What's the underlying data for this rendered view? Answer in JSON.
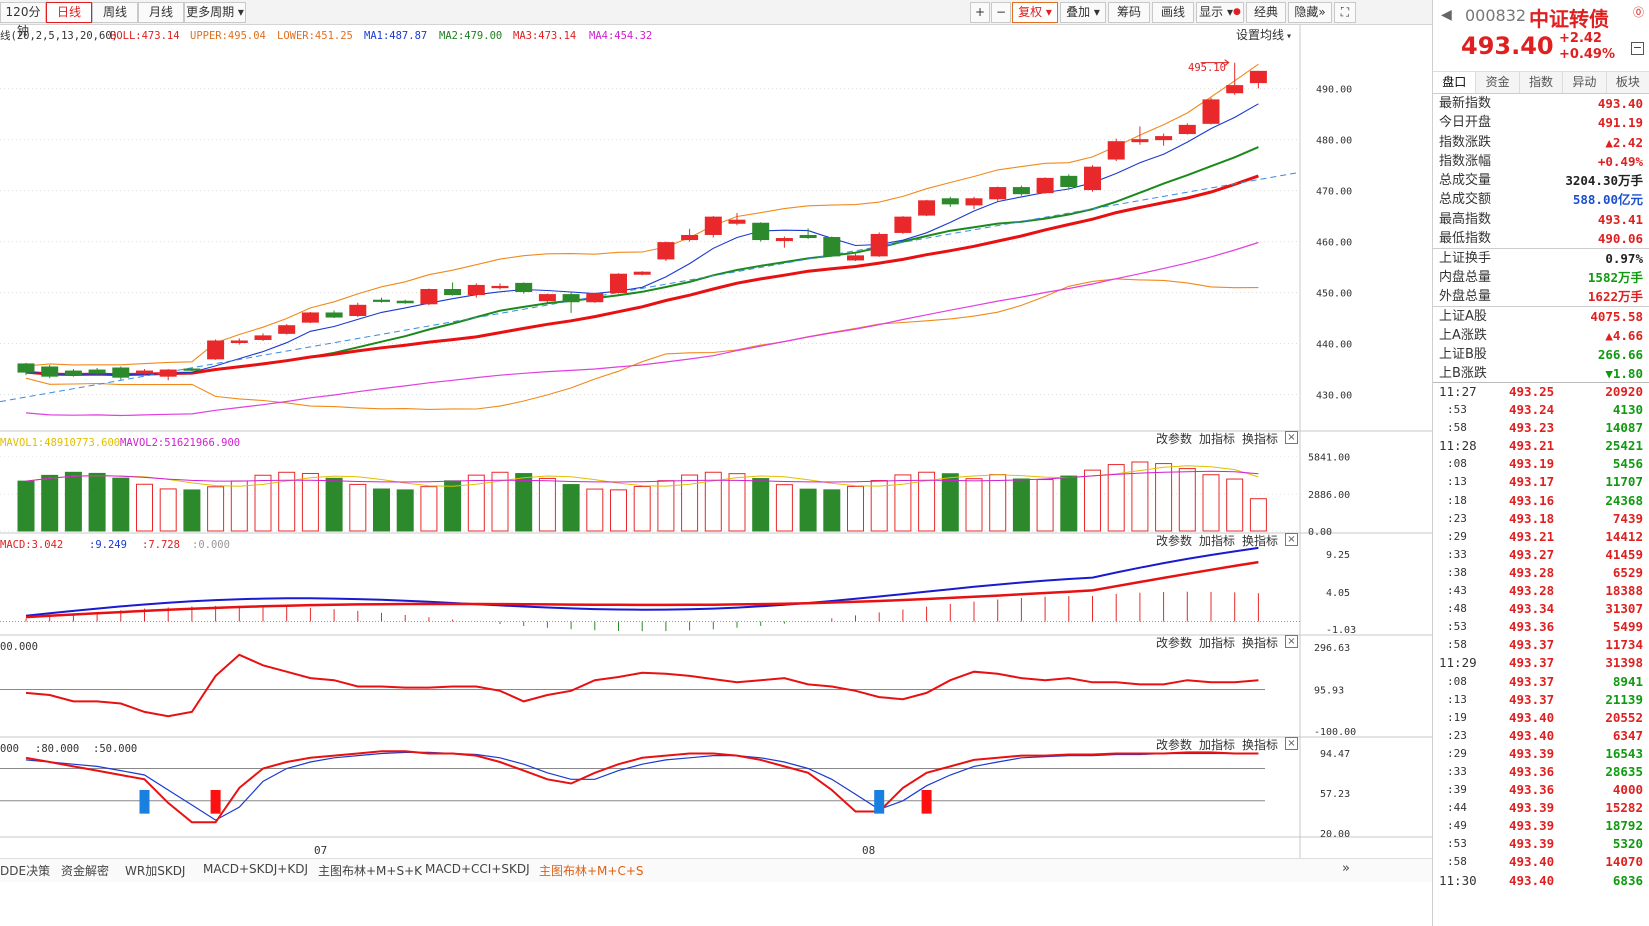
{
  "toolbar": {
    "periods": [
      "120分钟",
      "日线",
      "周线",
      "月线",
      "更多周期"
    ],
    "right_buttons": [
      "+",
      "−",
      "复权",
      "叠加",
      "筹码",
      "画线",
      "显示",
      "经典",
      "隐藏"
    ]
  },
  "legend": {
    "boll_param": "线(20,2,5,13,20,60)",
    "boll": "BOLL:473.14",
    "upper": "UPPER:495.04",
    "lower": "LOWER:451.25",
    "ma1": "MA1:487.87",
    "ma2": "MA2:479.00",
    "ma3": "MA3:473.14",
    "ma4": "MA4:454.32",
    "setting": "设置均线"
  },
  "price_axis": [
    "490.00",
    "480.00",
    "470.00",
    "460.00",
    "450.00",
    "440.00",
    "430.00"
  ],
  "annotations": {
    "high_label": "495.10"
  },
  "vol_legend": {
    "mavol1": "MAVOL1:48910773.600",
    "mavol2": "MAVOL2:51621966.900",
    "axis": [
      "5841.00",
      "2886.00",
      "0.00"
    ]
  },
  "macd_legend": {
    "macd": "MACD:3.042",
    "dif": ":9.249",
    "dea": ":7.728",
    "zero": ":0.000",
    "axis": [
      "9.25",
      "4.05",
      "-1.03"
    ]
  },
  "cci_legend": {
    "cci": "00.000",
    "axis": [
      "296.63",
      "95.93",
      "-100.00"
    ]
  },
  "kdj_legend": {
    "a": "000",
    "b": ":80.000",
    "c": ":50.000",
    "axis": [
      "94.47",
      "57.23",
      "20.00"
    ]
  },
  "pane_buttons": [
    "改参数",
    "加指标",
    "换指标"
  ],
  "x_labels": [
    "07",
    "08"
  ],
  "bottom_tabs": [
    "DDE决策",
    "资金解密",
    "WR加SKDJ",
    "MACD+SKDJ+KDJ",
    "主图布林+M+S+K",
    "MACD+CCI+SKDJ",
    "主图布林+M+C+S"
  ],
  "chart_data": {
    "type": "candlestick",
    "ylim": [
      425,
      497
    ],
    "candles": [
      {
        "o": 436.0,
        "c": 434.4,
        "h": 436.2,
        "l": 433.8
      },
      {
        "o": 435.4,
        "c": 433.6,
        "h": 435.8,
        "l": 433.2
      },
      {
        "o": 434.6,
        "c": 433.8,
        "h": 435.0,
        "l": 433.5
      },
      {
        "o": 434.8,
        "c": 434.2,
        "h": 435.2,
        "l": 433.7
      },
      {
        "o": 435.2,
        "c": 433.4,
        "h": 435.5,
        "l": 432.9
      },
      {
        "o": 434.2,
        "c": 434.6,
        "h": 435.0,
        "l": 433.9
      },
      {
        "o": 433.6,
        "c": 434.8,
        "h": 435.0,
        "l": 432.8
      },
      {
        "o": 435.0,
        "c": 434.8,
        "h": 435.2,
        "l": 434.6
      },
      {
        "o": 437.0,
        "c": 440.5,
        "h": 440.8,
        "l": 436.8
      },
      {
        "o": 440.2,
        "c": 440.5,
        "h": 441.0,
        "l": 439.8
      },
      {
        "o": 440.8,
        "c": 441.5,
        "h": 442.0,
        "l": 440.5
      },
      {
        "o": 442.0,
        "c": 443.5,
        "h": 443.8,
        "l": 441.8
      },
      {
        "o": 444.2,
        "c": 446.0,
        "h": 446.2,
        "l": 444.0
      },
      {
        "o": 446.0,
        "c": 445.2,
        "h": 446.5,
        "l": 445.0
      },
      {
        "o": 445.5,
        "c": 447.5,
        "h": 448.0,
        "l": 445.2
      },
      {
        "o": 448.5,
        "c": 448.3,
        "h": 449.0,
        "l": 448.0
      },
      {
        "o": 448.3,
        "c": 448.0,
        "h": 448.6,
        "l": 447.8
      },
      {
        "o": 447.8,
        "c": 450.6,
        "h": 450.8,
        "l": 447.5
      },
      {
        "o": 450.6,
        "c": 449.6,
        "h": 452.0,
        "l": 449.4
      },
      {
        "o": 449.6,
        "c": 451.4,
        "h": 451.8,
        "l": 449.0
      },
      {
        "o": 451.0,
        "c": 451.2,
        "h": 451.8,
        "l": 450.6
      },
      {
        "o": 451.8,
        "c": 450.2,
        "h": 452.0,
        "l": 449.8
      },
      {
        "o": 448.4,
        "c": 449.6,
        "h": 449.8,
        "l": 447.8
      },
      {
        "o": 449.6,
        "c": 448.2,
        "h": 450.0,
        "l": 446.0
      },
      {
        "o": 448.2,
        "c": 449.8,
        "h": 450.0,
        "l": 448.0
      },
      {
        "o": 450.0,
        "c": 453.6,
        "h": 453.8,
        "l": 449.8
      },
      {
        "o": 453.6,
        "c": 454.0,
        "h": 454.2,
        "l": 453.4
      },
      {
        "o": 456.6,
        "c": 459.8,
        "h": 460.0,
        "l": 456.2
      },
      {
        "o": 460.4,
        "c": 461.2,
        "h": 462.5,
        "l": 460.0
      },
      {
        "o": 461.4,
        "c": 464.8,
        "h": 465.0,
        "l": 460.8
      },
      {
        "o": 463.6,
        "c": 464.2,
        "h": 465.6,
        "l": 463.2
      },
      {
        "o": 463.6,
        "c": 460.4,
        "h": 463.8,
        "l": 460.0
      },
      {
        "o": 460.2,
        "c": 460.6,
        "h": 461.0,
        "l": 458.8
      },
      {
        "o": 461.2,
        "c": 460.8,
        "h": 462.6,
        "l": 460.5
      },
      {
        "o": 460.8,
        "c": 457.2,
        "h": 461.0,
        "l": 457.0
      },
      {
        "o": 456.4,
        "c": 457.2,
        "h": 457.6,
        "l": 456.2
      },
      {
        "o": 457.2,
        "c": 461.4,
        "h": 461.8,
        "l": 457.0
      },
      {
        "o": 461.8,
        "c": 464.8,
        "h": 465.0,
        "l": 461.5
      },
      {
        "o": 465.2,
        "c": 468.0,
        "h": 468.2,
        "l": 465.0
      },
      {
        "o": 468.4,
        "c": 467.4,
        "h": 468.8,
        "l": 466.8
      },
      {
        "o": 467.2,
        "c": 468.4,
        "h": 468.8,
        "l": 466.4
      },
      {
        "o": 468.4,
        "c": 470.6,
        "h": 470.8,
        "l": 468.0
      },
      {
        "o": 470.6,
        "c": 469.4,
        "h": 471.0,
        "l": 469.0
      },
      {
        "o": 469.6,
        "c": 472.4,
        "h": 472.6,
        "l": 469.4
      },
      {
        "o": 472.8,
        "c": 470.8,
        "h": 473.2,
        "l": 470.4
      },
      {
        "o": 470.2,
        "c": 474.6,
        "h": 475.0,
        "l": 469.8
      },
      {
        "o": 476.2,
        "c": 479.6,
        "h": 480.2,
        "l": 475.8
      },
      {
        "o": 479.6,
        "c": 480.0,
        "h": 482.6,
        "l": 479.0
      },
      {
        "o": 480.0,
        "c": 480.6,
        "h": 481.2,
        "l": 478.8
      },
      {
        "o": 481.2,
        "c": 482.8,
        "h": 483.2,
        "l": 481.0
      },
      {
        "o": 483.2,
        "c": 487.8,
        "h": 488.2,
        "l": 483.0
      },
      {
        "o": 489.2,
        "c": 490.6,
        "h": 495.1,
        "l": 488.8
      },
      {
        "o": 491.19,
        "c": 493.4,
        "h": 493.41,
        "l": 490.06
      }
    ]
  },
  "panel": {
    "code": "000832",
    "name": "中证转债",
    "last": "493.40",
    "change": "+2.42",
    "pct": "+0.49%",
    "tabs": [
      "盘口",
      "资金",
      "指数",
      "异动",
      "板块"
    ],
    "quote": [
      {
        "label": "最新指数",
        "value": "493.40",
        "color": "red"
      },
      {
        "label": "今日开盘",
        "value": "491.19",
        "color": "red"
      },
      {
        "label": "指数涨跌",
        "value": "▲2.42",
        "color": "red"
      },
      {
        "label": "指数涨幅",
        "value": "+0.49%",
        "color": "red"
      },
      {
        "label": "总成交量",
        "value": "3204.30万手",
        "color": "black"
      },
      {
        "label": "总成交额",
        "value": "588.00亿元",
        "color": "blue"
      },
      {
        "label": "最高指数",
        "value": "493.41",
        "color": "red"
      },
      {
        "label": "最低指数",
        "value": "490.06",
        "color": "red"
      },
      {
        "label": "上证换手",
        "value": "0.97%",
        "color": "black",
        "div": true
      },
      {
        "label": "内盘总量",
        "value": "1582万手",
        "color": "green"
      },
      {
        "label": "外盘总量",
        "value": "1622万手",
        "color": "red"
      },
      {
        "label": "上证A股",
        "value": "4075.58",
        "color": "red",
        "div": true
      },
      {
        "label": "上A涨跌",
        "value": "▲4.66",
        "color": "red"
      },
      {
        "label": "上证B股",
        "value": "266.66",
        "color": "green"
      },
      {
        "label": "上B涨跌",
        "value": "▼1.80",
        "color": "green"
      }
    ],
    "ticks": [
      {
        "t": "11:27",
        "p": "493.25",
        "v": "20920",
        "c": "red",
        "main": true
      },
      {
        "t": ":53",
        "p": "493.24",
        "v": "4130",
        "c": "green"
      },
      {
        "t": ":58",
        "p": "493.23",
        "v": "14087",
        "c": "green"
      },
      {
        "t": "11:28",
        "p": "493.21",
        "v": "25421",
        "c": "green",
        "main": true
      },
      {
        "t": ":08",
        "p": "493.19",
        "v": "5456",
        "c": "green"
      },
      {
        "t": ":13",
        "p": "493.17",
        "v": "11707",
        "c": "green"
      },
      {
        "t": ":18",
        "p": "493.16",
        "v": "24368",
        "c": "green"
      },
      {
        "t": ":23",
        "p": "493.18",
        "v": "7439",
        "c": "red"
      },
      {
        "t": ":29",
        "p": "493.21",
        "v": "14412",
        "c": "red"
      },
      {
        "t": ":33",
        "p": "493.27",
        "v": "41459",
        "c": "red"
      },
      {
        "t": ":38",
        "p": "493.28",
        "v": "6529",
        "c": "red"
      },
      {
        "t": ":43",
        "p": "493.28",
        "v": "18388",
        "c": "red"
      },
      {
        "t": ":48",
        "p": "493.34",
        "v": "31307",
        "c": "red"
      },
      {
        "t": ":53",
        "p": "493.36",
        "v": "5499",
        "c": "red"
      },
      {
        "t": ":58",
        "p": "493.37",
        "v": "11734",
        "c": "red"
      },
      {
        "t": "11:29",
        "p": "493.37",
        "v": "31398",
        "c": "red",
        "main": true
      },
      {
        "t": ":08",
        "p": "493.37",
        "v": "8941",
        "c": "green"
      },
      {
        "t": ":13",
        "p": "493.37",
        "v": "21139",
        "c": "green"
      },
      {
        "t": ":19",
        "p": "493.40",
        "v": "20552",
        "c": "red"
      },
      {
        "t": ":23",
        "p": "493.40",
        "v": "6347",
        "c": "red"
      },
      {
        "t": ":29",
        "p": "493.39",
        "v": "16543",
        "c": "green"
      },
      {
        "t": ":33",
        "p": "493.36",
        "v": "28635",
        "c": "green"
      },
      {
        "t": ":39",
        "p": "493.36",
        "v": "4000",
        "c": "red"
      },
      {
        "t": ":44",
        "p": "493.39",
        "v": "15282",
        "c": "red"
      },
      {
        "t": ":49",
        "p": "493.39",
        "v": "18792",
        "c": "green"
      },
      {
        "t": ":53",
        "p": "493.39",
        "v": "5320",
        "c": "green"
      },
      {
        "t": ":58",
        "p": "493.40",
        "v": "14070",
        "c": "red"
      },
      {
        "t": "11:30",
        "p": "493.40",
        "v": "6836",
        "c": "green",
        "main": true
      }
    ]
  }
}
